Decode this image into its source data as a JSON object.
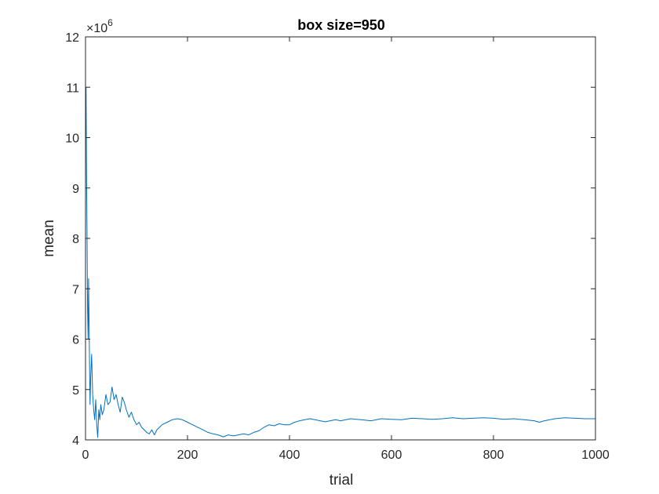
{
  "chart_data": {
    "type": "line",
    "title": "box size=950",
    "xlabel": "trial",
    "ylabel": "mean",
    "xlim": [
      0,
      1000
    ],
    "ylim": [
      4,
      12
    ],
    "y_exponent_base": "×10",
    "y_exponent_power": "6",
    "xticks": [
      "0",
      "200",
      "400",
      "600",
      "800",
      "1000"
    ],
    "yticks": [
      "4",
      "5",
      "6",
      "7",
      "8",
      "9",
      "10",
      "11",
      "12"
    ],
    "grid": false,
    "line_color": "#0072BD",
    "series": [
      {
        "x": [
          1,
          2,
          3,
          4,
          5,
          6,
          7,
          8,
          9,
          10,
          12,
          14,
          16,
          18,
          20,
          22,
          24,
          26,
          28,
          30,
          33,
          36,
          40,
          44,
          48,
          52,
          56,
          60,
          64,
          68,
          72,
          76,
          80,
          85,
          90,
          95,
          100,
          105,
          110,
          115,
          120,
          125,
          130,
          135,
          140,
          145,
          150,
          160,
          170,
          180,
          190,
          200,
          210,
          220,
          230,
          240,
          250,
          260,
          270,
          280,
          290,
          300,
          310,
          320,
          330,
          340,
          350,
          360,
          370,
          380,
          390,
          400,
          410,
          420,
          430,
          440,
          450,
          460,
          470,
          480,
          490,
          500,
          520,
          540,
          560,
          580,
          600,
          620,
          640,
          660,
          680,
          700,
          720,
          740,
          760,
          780,
          800,
          820,
          840,
          860,
          880,
          890,
          900,
          920,
          940,
          960,
          980,
          1000
        ],
        "y": [
          11.0,
          9.3,
          8.0,
          6.6,
          6.0,
          7.2,
          6.4,
          5.4,
          4.7,
          5.2,
          5.7,
          4.9,
          4.6,
          4.4,
          4.8,
          4.3,
          4.05,
          4.6,
          4.4,
          4.7,
          4.5,
          4.6,
          4.9,
          4.7,
          4.75,
          5.05,
          4.8,
          4.9,
          4.7,
          4.55,
          4.85,
          4.75,
          4.6,
          4.45,
          4.55,
          4.4,
          4.3,
          4.35,
          4.25,
          4.2,
          4.15,
          4.12,
          4.2,
          4.1,
          4.2,
          4.25,
          4.3,
          4.35,
          4.4,
          4.42,
          4.4,
          4.35,
          4.3,
          4.25,
          4.2,
          4.15,
          4.12,
          4.1,
          4.06,
          4.1,
          4.08,
          4.1,
          4.12,
          4.1,
          4.15,
          4.18,
          4.25,
          4.3,
          4.28,
          4.32,
          4.3,
          4.3,
          4.35,
          4.38,
          4.4,
          4.42,
          4.4,
          4.38,
          4.36,
          4.38,
          4.4,
          4.38,
          4.42,
          4.4,
          4.38,
          4.42,
          4.41,
          4.4,
          4.43,
          4.42,
          4.41,
          4.42,
          4.44,
          4.42,
          4.43,
          4.44,
          4.43,
          4.41,
          4.42,
          4.4,
          4.38,
          4.35,
          4.38,
          4.42,
          4.44,
          4.43,
          4.42,
          4.42
        ]
      }
    ]
  }
}
